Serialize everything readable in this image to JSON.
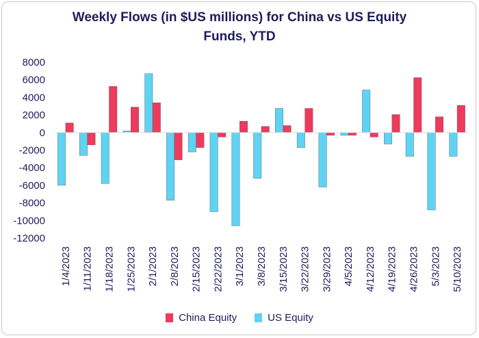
{
  "chart_data": {
    "type": "bar",
    "title_lines": [
      "Weekly Flows (in $US millions) for China vs US Equity",
      "Funds, YTD"
    ],
    "categories": [
      "1/4/2023",
      "1/11/2023",
      "1/18/2023",
      "1/25/2023",
      "2/1/2023",
      "2/8/2023",
      "2/15/2023",
      "2/22/2023",
      "3/1/2023",
      "3/8/2023",
      "3/15/2023",
      "3/22/2023",
      "3/29/2023",
      "4/5/2023",
      "4/12/2023",
      "4/19/2023",
      "4/26/2023",
      "5/3/2023",
      "5/10/2023"
    ],
    "series": [
      {
        "name": "China Equity",
        "color": "#ee3a5c",
        "values": [
          1100,
          -1400,
          5250,
          2900,
          3400,
          -3100,
          -1700,
          -500,
          1300,
          700,
          800,
          2750,
          -300,
          -300,
          -500,
          2050,
          6250,
          1800,
          3100
        ]
      },
      {
        "name": "US Equity",
        "color": "#5fd3f3",
        "values": [
          -6000,
          -2600,
          -5800,
          200,
          6700,
          -7700,
          -2200,
          -9000,
          -10600,
          -5200,
          2750,
          -1700,
          -6200,
          -300,
          4850,
          -1300,
          -2700,
          -8800,
          -2700
        ]
      }
    ],
    "y_ticks": [
      8000,
      6000,
      4000,
      2000,
      0,
      -2000,
      -4000,
      -6000,
      -8000,
      -10000,
      -12000
    ],
    "ylim": [
      -12000,
      8000
    ],
    "legend_position": "bottom",
    "grid": false
  }
}
